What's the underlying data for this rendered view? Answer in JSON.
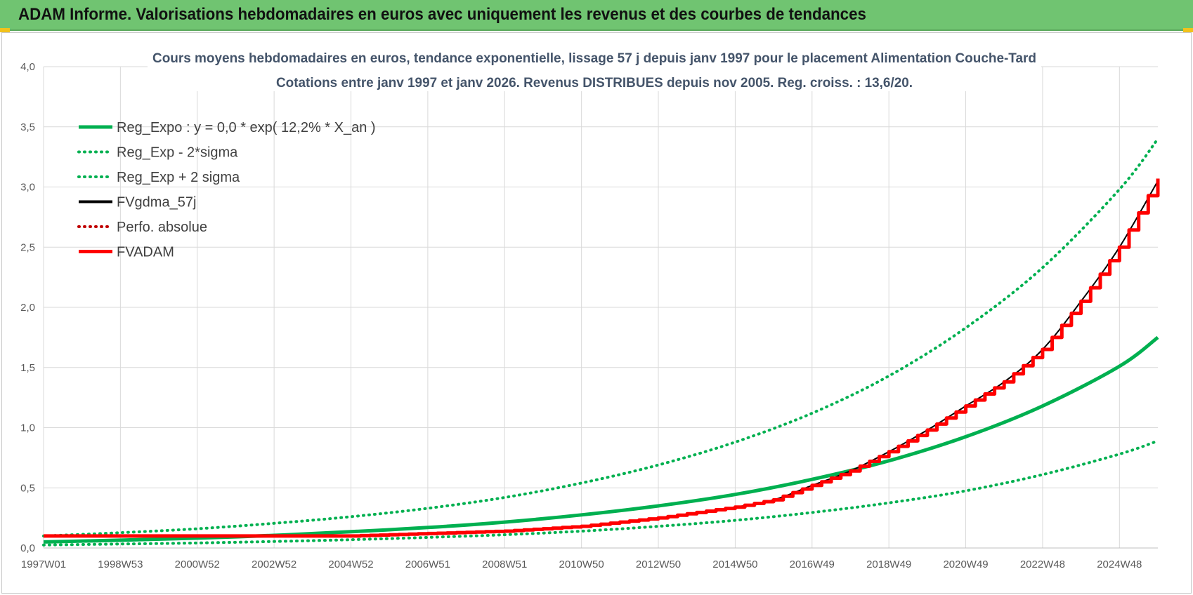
{
  "header": {
    "title": "ADAM Informe. Valorisations hebdomadaires en euros avec uniquement les revenus et des courbes de tendances"
  },
  "chart_data": {
    "type": "line",
    "title": "Cours moyens hebdomadaires en euros, tendance exponentielle, lissage 57 j depuis janv 1997 pour le placement Alimentation Couche-Tard",
    "subtitle": "Cotations entre janv 1997 et janv 2026. Revenus DISTRIBUES depuis nov 2005. Reg. croiss. : 13,6/20.",
    "xlabel": "",
    "ylabel": "",
    "ylim": [
      0,
      4
    ],
    "yticks": [
      "0,0",
      "0,5",
      "1,0",
      "1,5",
      "2,0",
      "2,5",
      "3,0",
      "3,5",
      "4,0"
    ],
    "xlim": [
      1997.0,
      2026.0
    ],
    "xtick_labels": [
      "1997W01",
      "1998W53",
      "2000W52",
      "2002W52",
      "2004W52",
      "2006W51",
      "2008W51",
      "2010W50",
      "2012W50",
      "2014W50",
      "2016W49",
      "2018W49",
      "2020W49",
      "2022W48",
      "2024W48"
    ],
    "xtick_years": [
      1997.0,
      1999.0,
      2001.0,
      2003.0,
      2005.0,
      2007.0,
      2009.0,
      2011.0,
      2013.0,
      2015.0,
      2017.0,
      2019.0,
      2021.0,
      2023.0,
      2025.0
    ],
    "grid": true,
    "legend_position": "top-left",
    "series": [
      {
        "name": "Reg_Expo : y = 0,0 * exp( 12,2% *  X_an )",
        "color": "#00b050",
        "style": "solid",
        "x": [
          1997,
          1999,
          2001,
          2003,
          2005,
          2007,
          2009,
          2011,
          2013,
          2015,
          2017,
          2019,
          2021,
          2023,
          2025,
          2026
        ],
        "y": [
          0.05,
          0.065,
          0.082,
          0.105,
          0.135,
          0.17,
          0.215,
          0.275,
          0.35,
          0.445,
          0.57,
          0.725,
          0.925,
          1.18,
          1.51,
          1.75
        ]
      },
      {
        "name": "Reg_Exp - 2*sigma",
        "color": "#00b050",
        "style": "dotted",
        "x": [
          1997,
          1999,
          2001,
          2003,
          2005,
          2007,
          2009,
          2011,
          2013,
          2015,
          2017,
          2019,
          2021,
          2023,
          2025,
          2026
        ],
        "y": [
          0.025,
          0.033,
          0.042,
          0.054,
          0.069,
          0.088,
          0.11,
          0.14,
          0.18,
          0.23,
          0.295,
          0.375,
          0.475,
          0.61,
          0.78,
          0.89
        ]
      },
      {
        "name": "Reg_Exp + 2 sigma",
        "color": "#00b050",
        "style": "dotted",
        "x": [
          1997,
          1999,
          2001,
          2003,
          2005,
          2007,
          2009,
          2011,
          2013,
          2015,
          2017,
          2019,
          2021,
          2023,
          2025,
          2026
        ],
        "y": [
          0.1,
          0.127,
          0.16,
          0.205,
          0.26,
          0.33,
          0.42,
          0.54,
          0.69,
          0.88,
          1.12,
          1.43,
          1.83,
          2.33,
          2.98,
          3.4
        ]
      },
      {
        "name": "FVgdma_57j",
        "color": "#000000",
        "style": "solid",
        "x": [
          1997,
          1999,
          2001,
          2003,
          2005,
          2007,
          2009,
          2011,
          2013,
          2015,
          2016,
          2017,
          2018,
          2019,
          2020,
          2021,
          2022,
          2023,
          2024,
          2025,
          2026
        ],
        "y": [
          0.1,
          0.1,
          0.1,
          0.1,
          0.1,
          0.12,
          0.14,
          0.18,
          0.25,
          0.34,
          0.4,
          0.52,
          0.64,
          0.8,
          0.98,
          1.18,
          1.38,
          1.65,
          2.05,
          2.5,
          3.05
        ]
      },
      {
        "name": "Perfo. absolue",
        "color": "#c00000",
        "style": "dotted",
        "x": [],
        "y": []
      },
      {
        "name": "FVADAM",
        "color": "#ff0000",
        "style": "solid-step",
        "x": [
          1997,
          1999,
          2001,
          2003,
          2005,
          2007,
          2009,
          2011,
          2013,
          2015,
          2016,
          2017,
          2018,
          2019,
          2020,
          2021,
          2022,
          2023,
          2024,
          2025,
          2026
        ],
        "y": [
          0.1,
          0.1,
          0.1,
          0.1,
          0.1,
          0.12,
          0.14,
          0.18,
          0.25,
          0.34,
          0.4,
          0.52,
          0.64,
          0.8,
          0.98,
          1.18,
          1.38,
          1.65,
          2.05,
          2.5,
          3.07
        ]
      }
    ]
  }
}
